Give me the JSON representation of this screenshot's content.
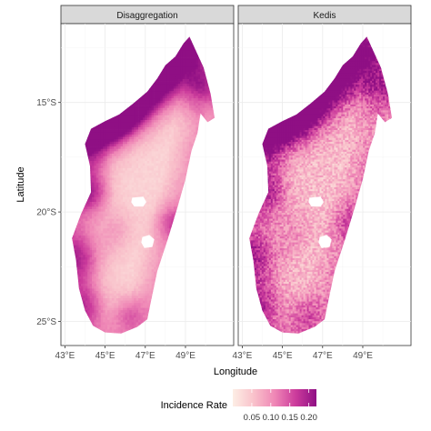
{
  "chart_data": {
    "type": "heatmap",
    "panels": [
      {
        "title": "Disaggregation",
        "pattern": "smooth"
      },
      {
        "title": "Kedis",
        "pattern": "speckled"
      }
    ],
    "xlabel": "Longitude",
    "ylabel": "Latitude",
    "x_ticks": [
      "43°E",
      "45°E",
      "47°E",
      "49°E"
    ],
    "x_tick_values": [
      43,
      45,
      47,
      49
    ],
    "y_ticks": [
      "15°S",
      "20°S",
      "25°S"
    ],
    "y_tick_values": [
      -15,
      -20,
      -25
    ],
    "xlim": [
      42.8,
      51.4
    ],
    "ylim": [
      -26.1,
      -11.4
    ],
    "grid": true,
    "legend": {
      "title": "Incidence Rate",
      "position": "bottom",
      "ticks": [
        "0.05",
        "0.10",
        "0.15",
        "0.20"
      ],
      "tick_values": [
        0.05,
        0.1,
        0.15,
        0.2
      ],
      "range": [
        0.0,
        0.22
      ],
      "colors": [
        "#fdeee5",
        "#f9c2cb",
        "#ef87b6",
        "#cc3c9c",
        "#8f0f84"
      ]
    },
    "outline_lonlat": [
      [
        49.2,
        -12.0
      ],
      [
        49.5,
        -12.6
      ],
      [
        49.9,
        -13.4
      ],
      [
        50.25,
        -14.6
      ],
      [
        50.45,
        -15.7
      ],
      [
        50.1,
        -15.9
      ],
      [
        49.75,
        -15.5
      ],
      [
        49.6,
        -16.4
      ],
      [
        49.3,
        -17.2
      ],
      [
        49.0,
        -18.5
      ],
      [
        48.6,
        -19.8
      ],
      [
        48.1,
        -21.3
      ],
      [
        47.6,
        -22.7
      ],
      [
        47.3,
        -24.0
      ],
      [
        47.1,
        -24.9
      ],
      [
        46.6,
        -25.25
      ],
      [
        45.8,
        -25.55
      ],
      [
        45.0,
        -25.5
      ],
      [
        44.4,
        -25.2
      ],
      [
        44.0,
        -24.5
      ],
      [
        43.7,
        -23.5
      ],
      [
        43.55,
        -22.2
      ],
      [
        43.35,
        -21.2
      ],
      [
        43.8,
        -20.1
      ],
      [
        44.3,
        -19.1
      ],
      [
        44.25,
        -17.9
      ],
      [
        44.0,
        -16.9
      ],
      [
        44.3,
        -16.2
      ],
      [
        45.0,
        -15.85
      ],
      [
        45.7,
        -15.55
      ],
      [
        46.4,
        -15.05
      ],
      [
        47.1,
        -14.5
      ],
      [
        47.6,
        -13.9
      ],
      [
        48.0,
        -13.3
      ],
      [
        48.5,
        -12.9
      ],
      [
        48.9,
        -12.3
      ]
    ],
    "lakes_lonlat": [
      [
        [
          46.35,
          -19.35
        ],
        [
          46.9,
          -19.3
        ],
        [
          47.05,
          -19.55
        ],
        [
          46.9,
          -19.75
        ],
        [
          46.45,
          -19.75
        ],
        [
          46.3,
          -19.55
        ]
      ],
      [
        [
          46.85,
          -21.15
        ],
        [
          47.2,
          -21.05
        ],
        [
          47.45,
          -21.25
        ],
        [
          47.35,
          -21.6
        ],
        [
          46.95,
          -21.65
        ],
        [
          46.8,
          -21.4
        ]
      ]
    ],
    "hotspots": [
      {
        "lon": 44.0,
        "lat": -16.5,
        "value": 0.19,
        "spread": 1.0
      },
      {
        "lon": 44.6,
        "lat": -16.0,
        "value": 0.18,
        "spread": 0.9
      },
      {
        "lon": 45.4,
        "lat": -15.7,
        "value": 0.2,
        "spread": 0.8
      },
      {
        "lon": 46.3,
        "lat": -15.3,
        "value": 0.2,
        "spread": 0.8
      },
      {
        "lon": 47.3,
        "lat": -14.3,
        "value": 0.21,
        "spread": 0.9
      },
      {
        "lon": 48.2,
        "lat": -13.3,
        "value": 0.21,
        "spread": 0.9
      },
      {
        "lon": 49.2,
        "lat": -12.5,
        "value": 0.17,
        "spread": 0.7
      },
      {
        "lon": 49.7,
        "lat": -14.3,
        "value": 0.16,
        "spread": 0.7
      },
      {
        "lon": 44.2,
        "lat": -19.1,
        "value": 0.16,
        "spread": 0.7
      },
      {
        "lon": 43.7,
        "lat": -22.0,
        "value": 0.16,
        "spread": 0.9
      },
      {
        "lon": 44.0,
        "lat": -24.3,
        "value": 0.14,
        "spread": 0.8
      },
      {
        "lon": 46.2,
        "lat": -24.6,
        "value": 0.13,
        "spread": 0.6
      },
      {
        "lon": 48.3,
        "lat": -20.5,
        "value": 0.12,
        "spread": 0.6
      },
      {
        "lon": 45.5,
        "lat": -20.8,
        "value": 0.09,
        "spread": 0.7
      }
    ]
  }
}
